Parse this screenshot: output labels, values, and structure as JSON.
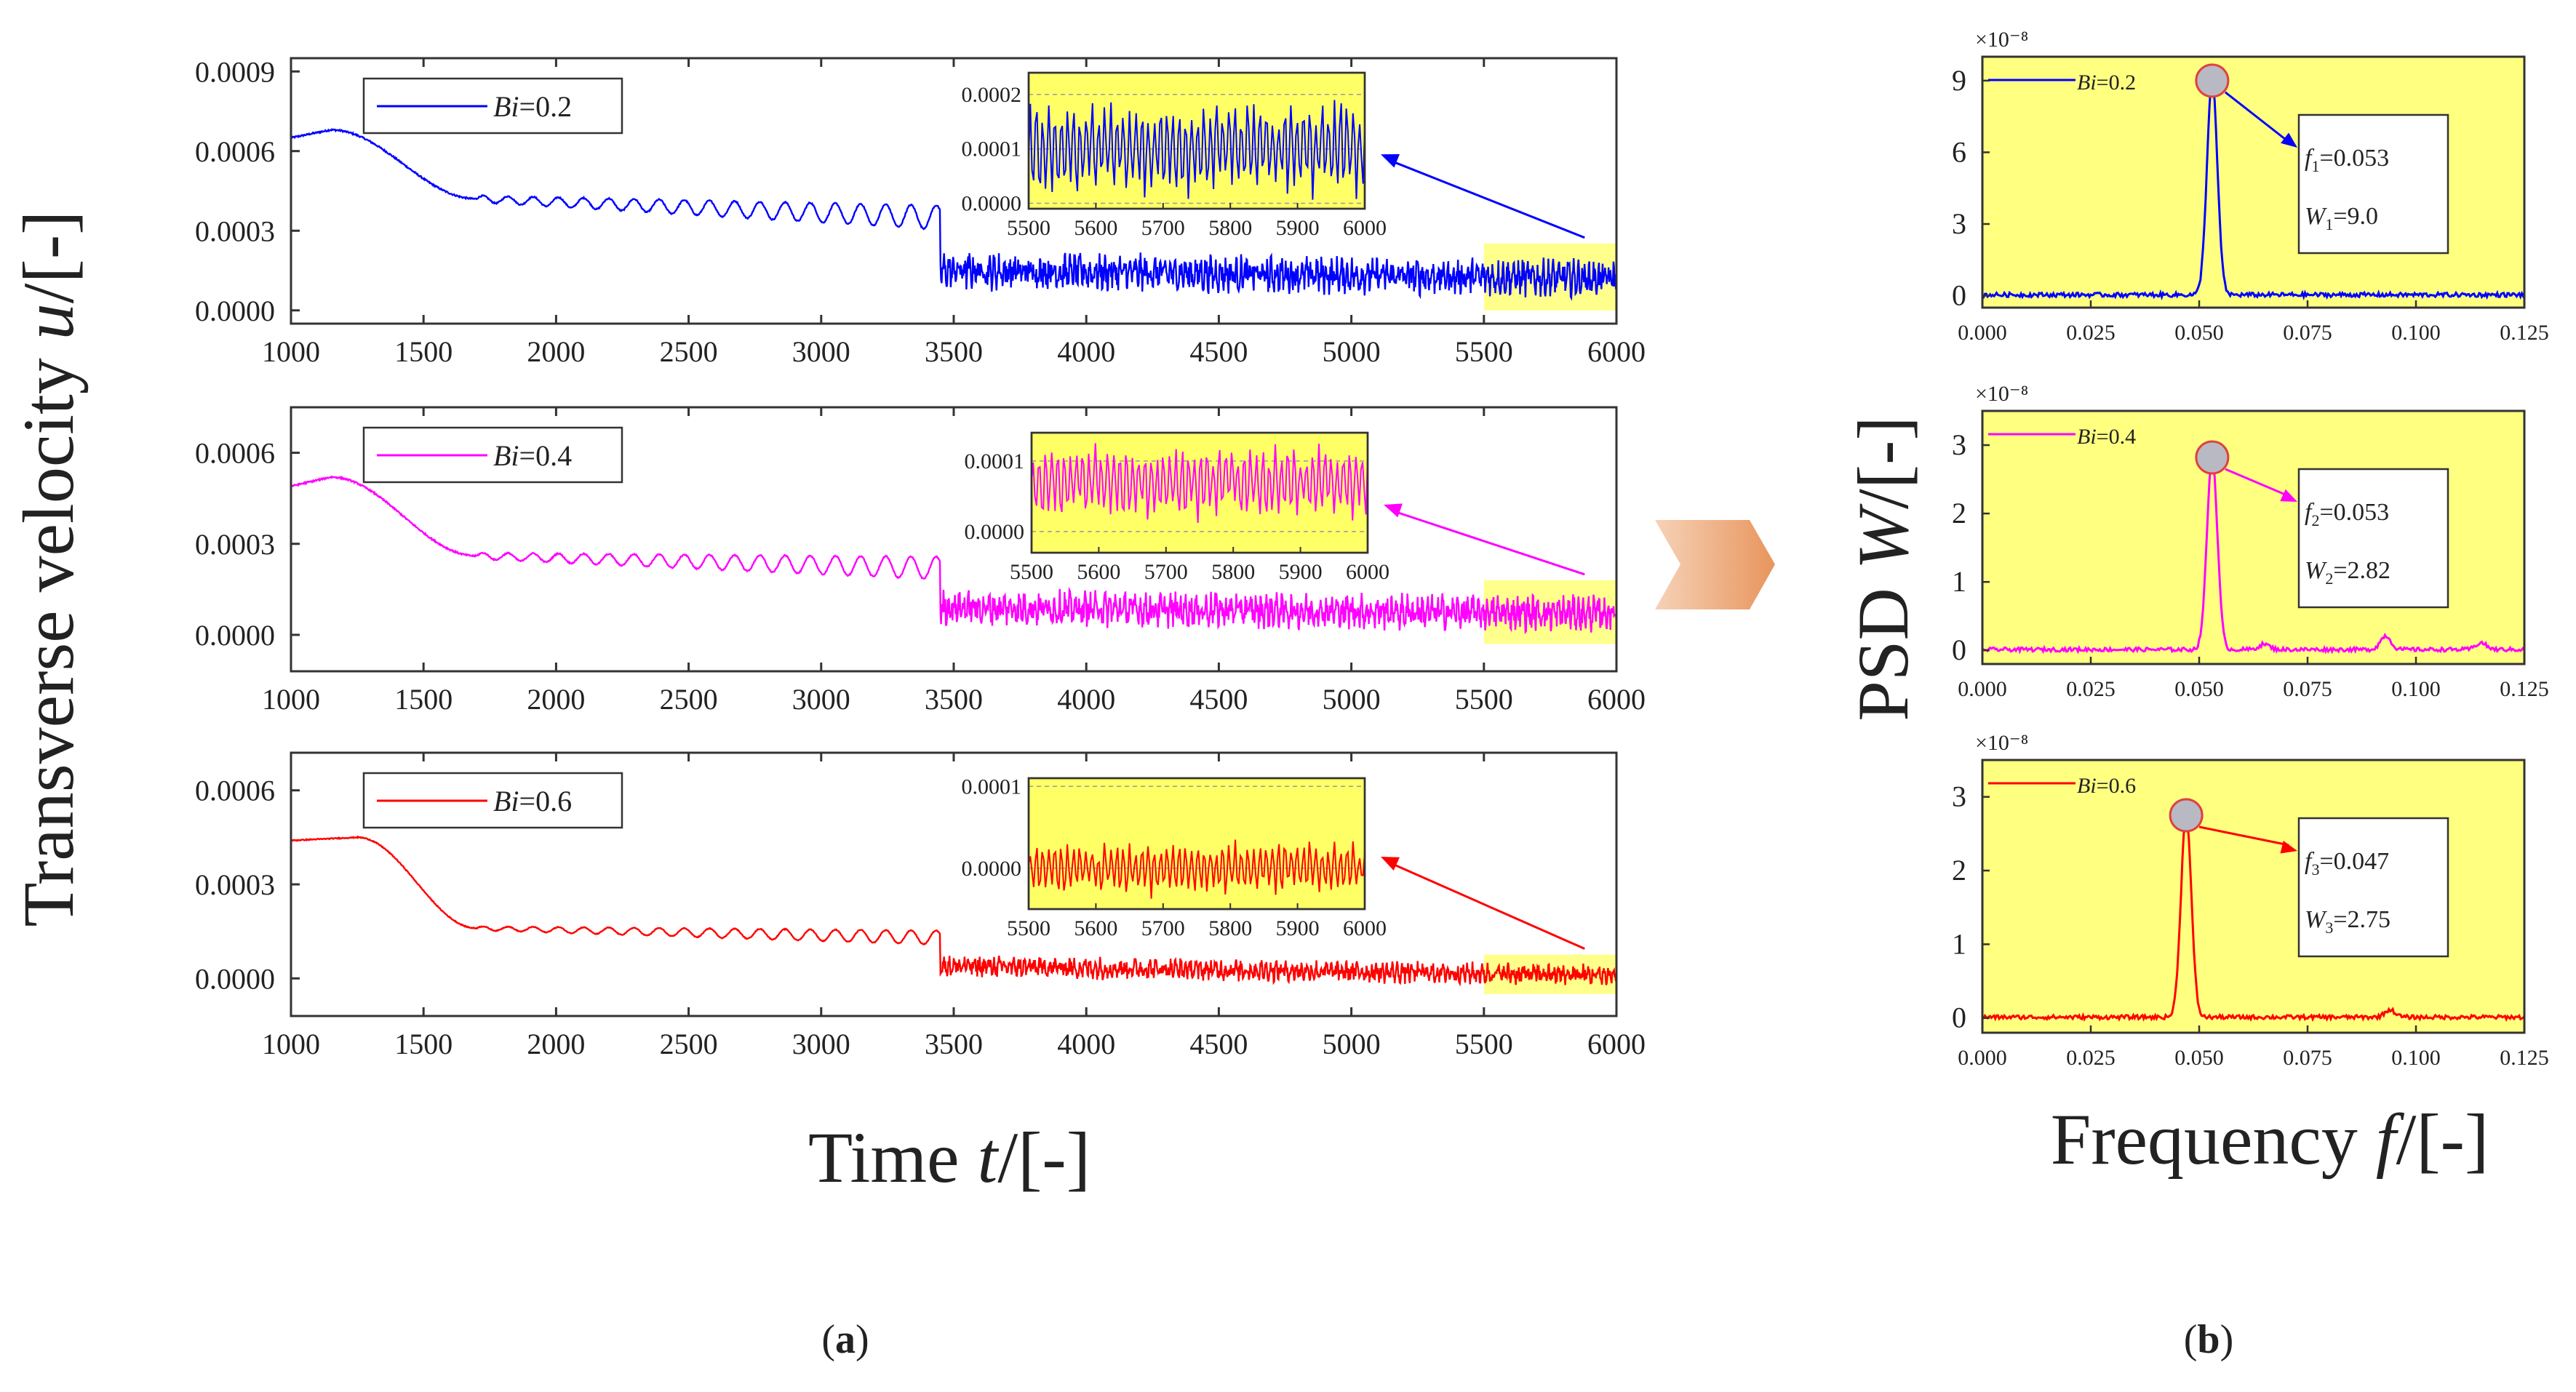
{
  "chart_data": [
    {
      "panel": "a",
      "type": "line",
      "xlabel_prefix": "Time ",
      "xlabel_var": "t",
      "xlabel_suffix": "/[-]",
      "ylabel_prefix": "Transverse velocity ",
      "ylabel_var": "u",
      "ylabel_suffix": "/[-]",
      "xlim": [
        1000,
        6000
      ],
      "xticks": [
        1000,
        1500,
        2000,
        2500,
        3000,
        3500,
        4000,
        4500,
        5000,
        5500,
        6000
      ],
      "caption": "a",
      "plots": [
        {
          "legend_var": "Bi",
          "legend_value": "=0.2",
          "color": "#0000ff",
          "ylim": [
            -5e-05,
            0.00095
          ],
          "yticks": [
            "0.0000",
            "0.0003",
            "0.0006",
            "0.0009"
          ],
          "ytick_values": [
            0,
            0.0003,
            0.0006,
            0.0009
          ],
          "start": 0.00065,
          "peak_t": 1150,
          "peak": 0.00068,
          "plateau": 0.00042,
          "mid": 0.00035,
          "late": 0.00015,
          "end": 0.00012,
          "noise": 6e-05,
          "inset": {
            "xticks": [
              "5500",
              "5600",
              "5700",
              "5800",
              "5900",
              "6000"
            ],
            "yticks": [
              "0.0000",
              "0.0001",
              "0.0002"
            ],
            "ytick_values": [
              0,
              0.0001,
              0.0002
            ],
            "ylim": [
              -1e-05,
              0.00024
            ],
            "center": 0.0001,
            "amp": 8e-05
          }
        },
        {
          "legend_var": "Bi",
          "legend_value": "=0.4",
          "color": "#ff00ff",
          "ylim": [
            -0.00012,
            0.00075
          ],
          "yticks": [
            "0.0000",
            "0.0003",
            "0.0006"
          ],
          "ytick_values": [
            0,
            0.0003,
            0.0006
          ],
          "start": 0.00049,
          "peak_t": 1150,
          "peak": 0.00052,
          "plateau": 0.00026,
          "mid": 0.00022,
          "late": 9e-05,
          "end": 7e-05,
          "noise": 5e-05,
          "inset": {
            "xticks": [
              "5500",
              "5600",
              "5700",
              "5800",
              "5900",
              "6000"
            ],
            "yticks": [
              "0.0000",
              "0.0001"
            ],
            "ytick_values": [
              0,
              0.0001
            ],
            "ylim": [
              -3e-05,
              0.00014
            ],
            "center": 7e-05,
            "amp": 5e-05
          }
        },
        {
          "legend_var": "Bi",
          "legend_value": "=0.6",
          "color": "#ff0000",
          "ylim": [
            -0.00012,
            0.00072
          ],
          "yticks": [
            "0.0000",
            "0.0003",
            "0.0006"
          ],
          "ytick_values": [
            0,
            0.0003,
            0.0006
          ],
          "start": 0.00044,
          "peak_t": 1250,
          "peak": 0.00045,
          "plateau": 0.00016,
          "mid": 0.00013,
          "late": 4e-05,
          "end": 1e-05,
          "noise": 3e-05,
          "inset": {
            "xticks": [
              "5500",
              "5600",
              "5700",
              "5800",
              "5900",
              "6000"
            ],
            "yticks": [
              "0.0000",
              "0.0001"
            ],
            "ytick_values": [
              0,
              0.0001
            ],
            "ylim": [
              -5e-05,
              0.00011
            ],
            "center": 0.0,
            "amp": 3e-05
          }
        }
      ]
    },
    {
      "panel": "b",
      "type": "line",
      "xlabel_prefix": "Frequency ",
      "xlabel_var": "f",
      "xlabel_suffix": "/[-]",
      "ylabel_prefix": "PSD ",
      "ylabel_var": "W",
      "ylabel_suffix": "/[-]",
      "xlim": [
        0.0,
        0.125
      ],
      "xticks": [
        "0.000",
        "0.025",
        "0.050",
        "0.075",
        "0.100",
        "0.125"
      ],
      "scale_label": "×10⁻⁸",
      "caption": "b",
      "plots": [
        {
          "legend_var": "Bi",
          "legend_value": "=0.2",
          "color": "#0000ff",
          "ylim": [
            -0.5,
            10
          ],
          "yticks": [
            "0",
            "3",
            "6",
            "9"
          ],
          "ytick_values": [
            0,
            3,
            6,
            9
          ],
          "peak_f": 0.053,
          "peak_w": 9.0,
          "f_sym": "f",
          "f_sub": "1",
          "f_text": "=0.053",
          "w_sym": "W",
          "w_sub": "1",
          "w_text": "=9.0",
          "bumps": []
        },
        {
          "legend_var": "Bi",
          "legend_value": "=0.4",
          "color": "#ff00ff",
          "ylim": [
            -0.2,
            3.5
          ],
          "yticks": [
            "0",
            "1",
            "2",
            "3"
          ],
          "ytick_values": [
            0,
            1,
            2,
            3
          ],
          "peak_f": 0.053,
          "peak_w": 2.82,
          "f_sym": "f",
          "f_sub": "2",
          "f_text": "=0.053",
          "w_sym": "W",
          "w_sub": "2",
          "w_text": "=2.82",
          "bumps": [
            [
              0.065,
              0.08
            ],
            [
              0.093,
              0.2
            ],
            [
              0.115,
              0.1
            ]
          ]
        },
        {
          "legend_var": "Bi",
          "legend_value": "=0.6",
          "color": "#ff0000",
          "ylim": [
            -0.2,
            3.5
          ],
          "yticks": [
            "0",
            "1",
            "2",
            "3"
          ],
          "ytick_values": [
            0,
            1,
            2,
            3
          ],
          "peak_f": 0.047,
          "peak_w": 2.75,
          "f_sym": "f",
          "f_sub": "3",
          "f_text": "=0.047",
          "w_sym": "W",
          "w_sub": "3",
          "w_text": "=2.75",
          "bumps": [
            [
              0.094,
              0.1
            ]
          ]
        }
      ]
    }
  ]
}
